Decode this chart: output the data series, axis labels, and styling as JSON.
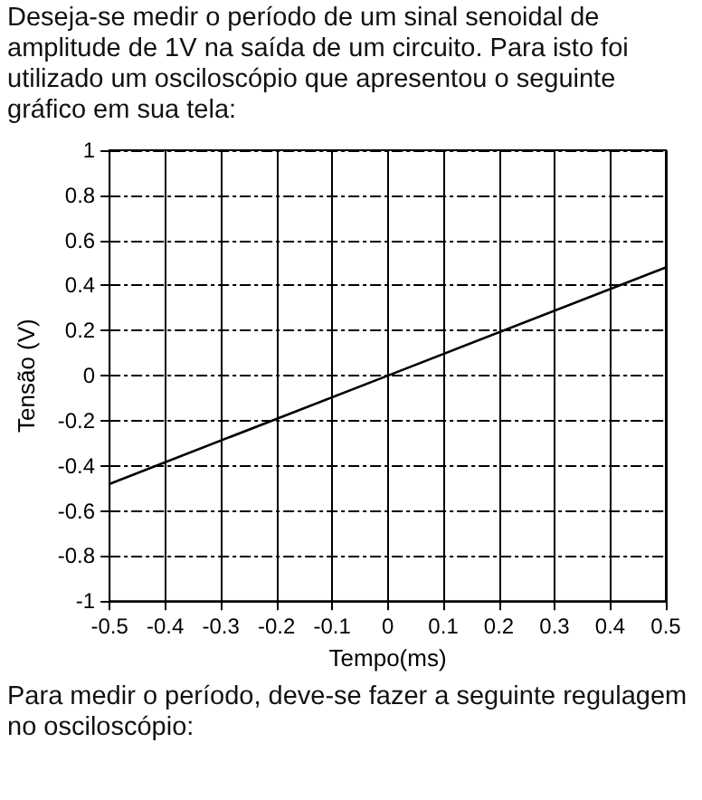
{
  "chart_data": {
    "type": "line",
    "title": "Deseja-se medir o período de um sinal senoidal de amplitude de 1V na saída de um circuito. Para isto foi utilizado um osciloscópio que apresentou o seguinte gráfico em sua tela:",
    "annotations": [
      "Para medir o período, deve-se fazer a seguinte regulagem no osciloscópio:"
    ],
    "xlabel": "Tempo(ms)",
    "ylabel": "Tensão (V)",
    "x": [
      -0.5,
      0,
      0.5
    ],
    "series": [
      {
        "color": "#000000",
        "values": [
          -0.48,
          0,
          0.48
        ]
      }
    ],
    "xlim": [
      -0.5,
      0.5
    ],
    "xticks": [
      -0.5,
      -0.4,
      -0.3,
      -0.2,
      -0.1,
      0,
      0.1,
      0.2,
      0.3,
      0.4,
      0.5
    ],
    "ylim": [
      -1,
      1
    ],
    "yticks": [
      -1,
      -0.8,
      -0.6,
      -0.4,
      -0.2,
      0,
      0.2,
      0.4,
      0.6,
      0.8,
      1
    ],
    "grid": true,
    "legend": false,
    "marker": "none",
    "line_style": "solid"
  }
}
